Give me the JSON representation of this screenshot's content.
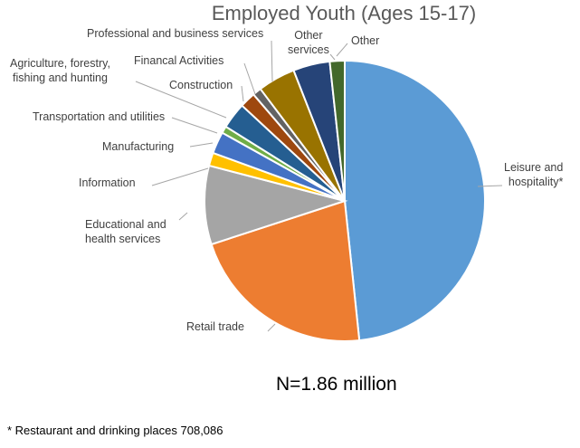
{
  "chart_data": {
    "type": "pie",
    "title": "Employed Youth (Ages 15-17)",
    "categories": [
      "Leisure and hospitality*",
      "Retail trade",
      "Educational and health services",
      "Information",
      "Manufacturing",
      "Transportation and utilities",
      "Agriculture, forestry, fishing and hunting",
      "Construction",
      "Financal Activities",
      "Professional and business services",
      "Other services",
      "Other"
    ],
    "values": [
      48.0,
      21.5,
      9.0,
      1.5,
      2.5,
      0.8,
      3.0,
      1.8,
      1.0,
      4.3,
      4.2,
      1.7
    ],
    "unit": "percent (estimated from slice angles)",
    "colors": [
      "#5b9bd5",
      "#ed7d31",
      "#a5a5a5",
      "#ffc000",
      "#4472c4",
      "#70ad47",
      "#255e91",
      "#9e480e",
      "#636363",
      "#997300",
      "#264478",
      "#43682b"
    ],
    "annotation": "N=1.86 million",
    "footnote": "* Restaurant and drinking places 708,086",
    "legend": "none (data labels with leader lines)"
  },
  "labels": {
    "title": "Employed Youth (Ages 15-17)",
    "leisure_1": "Leisure and",
    "leisure_2": "hospitality*",
    "retail": "Retail trade",
    "edu_1": "Educational and",
    "edu_2": "health services",
    "info": "Information",
    "manuf": "Manufacturing",
    "transport": "Transportation and utilities",
    "agri_1": "Agriculture, forestry,",
    "agri_2": "fishing and hunting",
    "construction": "Construction",
    "financial": "Financal Activities",
    "professional": "Professional and business services",
    "other_services_1": "Other",
    "other_services_2": "services",
    "other": "Other",
    "n": "N=1.86 million",
    "footnote": "* Restaurant and drinking places 708,086"
  }
}
